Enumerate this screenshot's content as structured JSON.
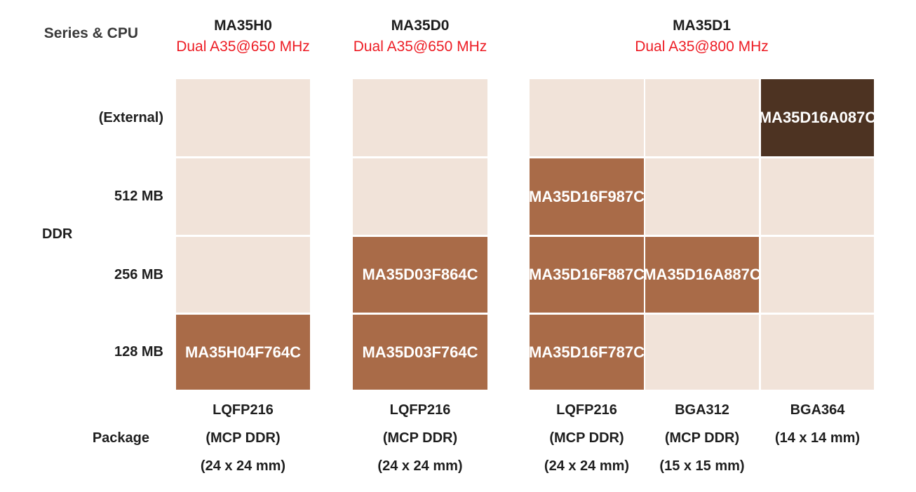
{
  "colors": {
    "cell-empty": "#f1e3d9",
    "cell-filled": "#a96b48",
    "cell-external": "#4d3322",
    "part-text": "#ffffff",
    "cpu-text": "#ed1c24",
    "header-text": "#1e1e1e",
    "axis-text": "#3a3a3a"
  },
  "header": {
    "label": "Series & CPU",
    "series": [
      {
        "name": "MA35H0",
        "cpu": "Dual A35@650 MHz"
      },
      {
        "name": "MA35D0",
        "cpu": "Dual A35@650 MHz"
      },
      {
        "name": "MA35D1",
        "cpu": "Dual A35@800 MHz"
      }
    ]
  },
  "ddr_axis": {
    "label": "DDR",
    "rows": [
      {
        "label": "(External)"
      },
      {
        "label": "512 MB"
      },
      {
        "label": "256 MB"
      },
      {
        "label": "128 MB"
      }
    ]
  },
  "package_axis": {
    "label": "Package",
    "columns": [
      {
        "line1": "LQFP216",
        "line2": "(MCP DDR)",
        "line3": "(24 x 24 mm)"
      },
      {
        "line1": "LQFP216",
        "line2": "(MCP DDR)",
        "line3": "(24 x 24 mm)"
      },
      {
        "line1": "LQFP216",
        "line2": "(MCP DDR)",
        "line3": "(24 x 24 mm)"
      },
      {
        "line1": "BGA312",
        "line2": "(MCP DDR)",
        "line3": "(15 x 15 mm)"
      },
      {
        "line1": "BGA364",
        "line2": "(14 x 14 mm)",
        "line3": ""
      }
    ]
  },
  "matrix": {
    "columns": [
      {
        "series": "MA35H0",
        "package": "LQFP216",
        "cells": [
          {
            "ddr": "(External)",
            "part": "",
            "available": false
          },
          {
            "ddr": "512 MB",
            "part": "",
            "available": false
          },
          {
            "ddr": "256 MB",
            "part": "",
            "available": false
          },
          {
            "ddr": "128 MB",
            "part": "MA35H04F764C",
            "available": true
          }
        ]
      },
      {
        "series": "MA35D0",
        "package": "LQFP216",
        "cells": [
          {
            "ddr": "(External)",
            "part": "",
            "available": false
          },
          {
            "ddr": "512 MB",
            "part": "",
            "available": false
          },
          {
            "ddr": "256 MB",
            "part": "MA35D03F864C",
            "available": true
          },
          {
            "ddr": "128 MB",
            "part": "MA35D03F764C",
            "available": true
          }
        ]
      },
      {
        "series": "MA35D1",
        "package": "LQFP216",
        "cells": [
          {
            "ddr": "(External)",
            "part": "",
            "available": false
          },
          {
            "ddr": "512 MB",
            "part": "MA35D16F987C",
            "available": true
          },
          {
            "ddr": "256 MB",
            "part": "MA35D16F887C",
            "available": true
          },
          {
            "ddr": "128 MB",
            "part": "MA35D16F787C",
            "available": true
          }
        ]
      },
      {
        "series": "MA35D1",
        "package": "BGA312",
        "cells": [
          {
            "ddr": "(External)",
            "part": "",
            "available": false
          },
          {
            "ddr": "512 MB",
            "part": "",
            "available": false
          },
          {
            "ddr": "256 MB",
            "part": "MA35D16A887C",
            "available": true
          },
          {
            "ddr": "128 MB",
            "part": "",
            "available": false
          }
        ]
      },
      {
        "series": "MA35D1",
        "package": "BGA364",
        "cells": [
          {
            "ddr": "(External)",
            "part": "MA35D16A087C",
            "available": true
          },
          {
            "ddr": "512 MB",
            "part": "",
            "available": false
          },
          {
            "ddr": "256 MB",
            "part": "",
            "available": false
          },
          {
            "ddr": "128 MB",
            "part": "",
            "available": false
          }
        ]
      }
    ]
  }
}
